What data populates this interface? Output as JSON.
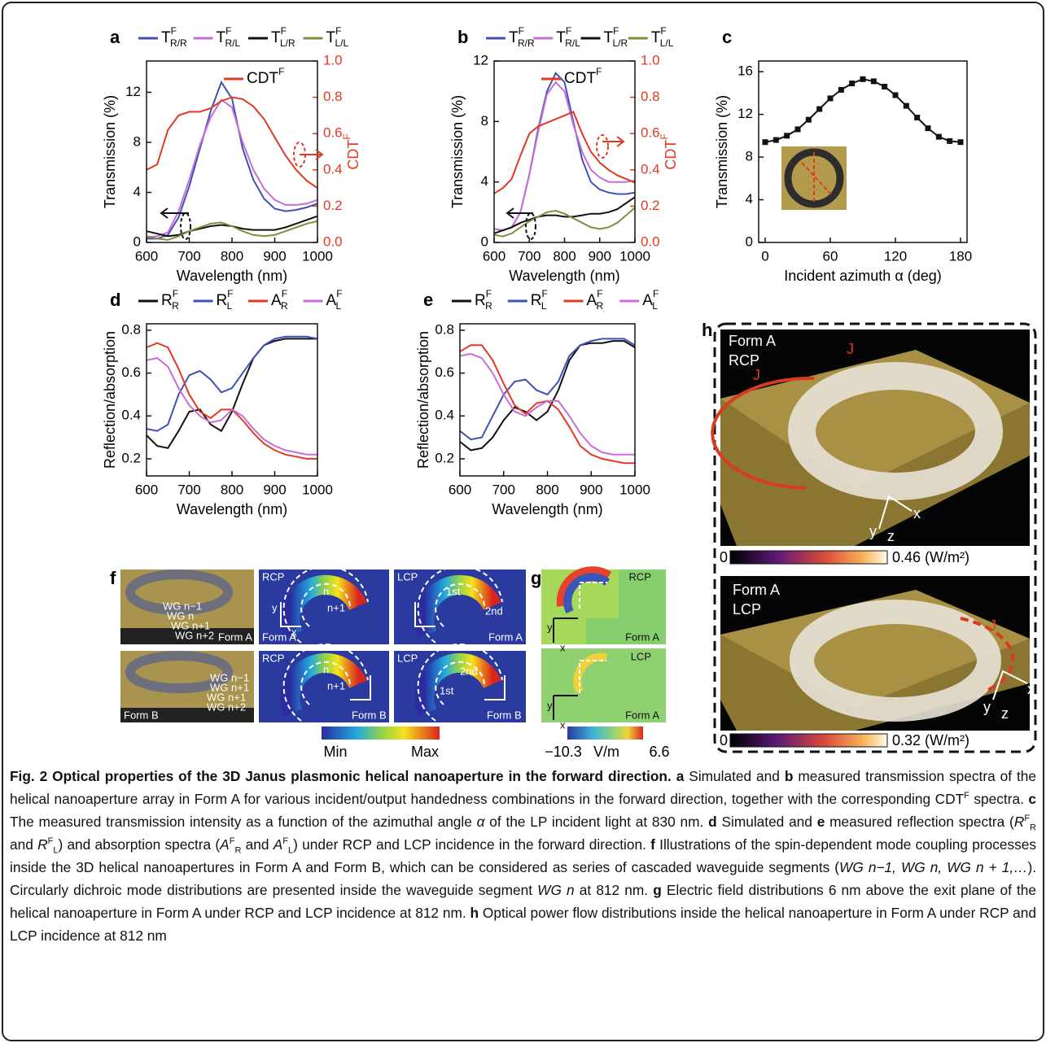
{
  "chart_data": [
    {
      "type": "line",
      "panel": "a",
      "xlabel": "Wavelength (nm)",
      "ylabel": "Transmission (%)",
      "y2label": "CDT",
      "y2label_sup": "F",
      "x": [
        600,
        625,
        650,
        675,
        700,
        725,
        750,
        775,
        800,
        825,
        850,
        875,
        900,
        925,
        950,
        975,
        1000
      ],
      "xlim": [
        600,
        1000
      ],
      "xticks": [
        600,
        700,
        800,
        900,
        1000
      ],
      "ylim": [
        0,
        14.5
      ],
      "yticks": [
        0,
        4,
        8,
        12
      ],
      "y2lim": [
        0,
        1
      ],
      "y2ticks": [
        {
          "value": 0,
          "label": "0.0"
        },
        {
          "value": 0.2,
          "label": "0.2"
        },
        {
          "value": 0.4,
          "label": "0.4"
        },
        {
          "value": 0.6,
          "label": "0.6"
        },
        {
          "value": 0.8,
          "label": "0.8"
        },
        {
          "value": 1,
          "label": "1.0"
        }
      ],
      "series": [
        {
          "name": "T",
          "sub": "R/R",
          "sup": "F",
          "color": "#3f51b5",
          "values": [
            0.3,
            0.3,
            0.6,
            2,
            4.5,
            7.5,
            10.5,
            12.8,
            11.5,
            7.5,
            5,
            3.5,
            2.7,
            2.5,
            2.6,
            2.8,
            3.1
          ]
        },
        {
          "name": "T",
          "sub": "R/L",
          "sup": "F",
          "color": "#c86dd7",
          "values": [
            0.4,
            0.5,
            0.8,
            2.5,
            5,
            7.8,
            10,
            11.4,
            10.8,
            8,
            5.8,
            4.3,
            3.4,
            3,
            3,
            3.1,
            3.4
          ]
        },
        {
          "name": "T",
          "sub": "L/R",
          "sup": "F",
          "color": "#111111",
          "values": [
            0.9,
            0.7,
            0.5,
            0.6,
            0.9,
            1.1,
            1.3,
            1.4,
            1.3,
            1.1,
            1,
            1,
            1,
            1.2,
            1.5,
            1.8,
            2.1
          ]
        },
        {
          "name": "T",
          "sub": "L/L",
          "sup": "F",
          "color": "#8a8a3c",
          "values": [
            0.5,
            0.3,
            0.2,
            0.5,
            0.9,
            1.2,
            1.5,
            1.6,
            1.3,
            0.9,
            0.6,
            0.5,
            0.6,
            0.9,
            1.2,
            1.5,
            1.7
          ]
        },
        {
          "name": "CDT",
          "sup": "F",
          "color": "#e03a22",
          "axis": "y2",
          "values": [
            0.4,
            0.43,
            0.62,
            0.7,
            0.72,
            0.72,
            0.74,
            0.78,
            0.8,
            0.79,
            0.75,
            0.68,
            0.58,
            0.48,
            0.4,
            0.34,
            0.3
          ]
        }
      ]
    },
    {
      "type": "line",
      "panel": "b",
      "xlabel": "Wavelength (nm)",
      "ylabel": "Transmission (%)",
      "y2label": "CDT",
      "y2label_sup": "F",
      "x": [
        600,
        625,
        650,
        675,
        700,
        725,
        750,
        775,
        800,
        825,
        850,
        875,
        900,
        925,
        950,
        975,
        1000
      ],
      "xlim": [
        600,
        1000
      ],
      "xticks": [
        600,
        700,
        800,
        900,
        1000
      ],
      "ylim": [
        0,
        12
      ],
      "yticks": [
        0,
        4,
        8,
        12
      ],
      "y2lim": [
        0,
        1
      ],
      "y2ticks": [
        {
          "value": 0,
          "label": "0.0"
        },
        {
          "value": 0.2,
          "label": "0.2"
        },
        {
          "value": 0.4,
          "label": "0.4"
        },
        {
          "value": 0.6,
          "label": "0.6"
        },
        {
          "value": 0.8,
          "label": "0.8"
        },
        {
          "value": 1,
          "label": "1.0"
        }
      ],
      "series": [
        {
          "name": "T",
          "sub": "R/R",
          "sup": "F",
          "color": "#3f51b5",
          "values": [
            0.9,
            0.8,
            1,
            2,
            4.5,
            7.5,
            10,
            11.2,
            10.6,
            8,
            5.5,
            4,
            3.5,
            3.3,
            3.2,
            3.2,
            3.3
          ]
        },
        {
          "name": "T",
          "sub": "R/L",
          "sup": "F",
          "color": "#c86dd7",
          "values": [
            0.9,
            0.8,
            1,
            2,
            4.5,
            7.3,
            9.8,
            10.6,
            10,
            7.8,
            6,
            4.8,
            4.3,
            4,
            4,
            4,
            4.1
          ]
        },
        {
          "name": "T",
          "sub": "L/R",
          "sup": "F",
          "color": "#111111",
          "values": [
            0.6,
            0.8,
            1,
            1.3,
            1.5,
            1.7,
            1.8,
            1.8,
            1.7,
            1.7,
            1.8,
            1.9,
            1.9,
            2,
            2.2,
            2.6,
            3
          ]
        },
        {
          "name": "T",
          "sub": "L/L",
          "sup": "F",
          "color": "#8a8a3c",
          "values": [
            0.5,
            0.4,
            0.6,
            1,
            1.4,
            1.7,
            2,
            2.1,
            1.9,
            1.6,
            1.3,
            1,
            0.9,
            1,
            1.3,
            1.8,
            2.3
          ]
        },
        {
          "name": "CDT",
          "sup": "F",
          "color": "#e03a22",
          "axis": "y2",
          "values": [
            0.27,
            0.3,
            0.35,
            0.48,
            0.6,
            0.64,
            0.66,
            0.68,
            0.7,
            0.72,
            0.6,
            0.5,
            0.44,
            0.4,
            0.37,
            0.35,
            0.33
          ]
        }
      ]
    },
    {
      "type": "line",
      "panel": "c",
      "markers": true,
      "xlabel": "Incident azimuth α (deg)",
      "ylabel": "Transmission (%)",
      "x": [
        0,
        10,
        20,
        30,
        40,
        50,
        60,
        70,
        80,
        90,
        100,
        110,
        120,
        130,
        140,
        150,
        160,
        170,
        180
      ],
      "xlim": [
        -6,
        186
      ],
      "xticks": [
        0,
        60,
        120,
        180
      ],
      "ylim": [
        0,
        17
      ],
      "yticks": [
        0,
        4,
        8,
        12,
        16
      ],
      "series": [
        {
          "color": "#111111",
          "values": [
            9.4,
            9.6,
            10,
            10.6,
            11.5,
            12.5,
            13.5,
            14.3,
            14.9,
            15.3,
            15.1,
            14.6,
            13.8,
            12.8,
            11.7,
            10.7,
            9.9,
            9.5,
            9.4
          ]
        }
      ]
    },
    {
      "type": "line",
      "panel": "d",
      "xlabel": "Wavelength (nm)",
      "ylabel": "Reflection/absorption",
      "x": [
        600,
        625,
        650,
        675,
        700,
        725,
        750,
        775,
        800,
        825,
        850,
        875,
        900,
        925,
        950,
        975,
        1000
      ],
      "xlim": [
        600,
        1000
      ],
      "xticks": [
        600,
        700,
        800,
        900,
        1000
      ],
      "ylim": [
        0.12,
        0.83
      ],
      "yticks": [
        0.2,
        0.4,
        0.6,
        0.8
      ],
      "series": [
        {
          "name": "R",
          "sub": "R",
          "sup": "F",
          "color": "#111111",
          "values": [
            0.31,
            0.26,
            0.25,
            0.33,
            0.42,
            0.43,
            0.36,
            0.33,
            0.42,
            0.55,
            0.67,
            0.73,
            0.75,
            0.76,
            0.76,
            0.76,
            0.76
          ]
        },
        {
          "name": "R",
          "sub": "L",
          "sup": "F",
          "color": "#3f51b5",
          "values": [
            0.34,
            0.33,
            0.36,
            0.5,
            0.59,
            0.61,
            0.57,
            0.51,
            0.53,
            0.6,
            0.67,
            0.73,
            0.76,
            0.77,
            0.77,
            0.77,
            0.76
          ]
        },
        {
          "name": "A",
          "sub": "R",
          "sup": "F",
          "color": "#e03a22",
          "values": [
            0.72,
            0.74,
            0.72,
            0.62,
            0.5,
            0.42,
            0.39,
            0.43,
            0.43,
            0.38,
            0.32,
            0.27,
            0.24,
            0.22,
            0.21,
            0.2,
            0.2
          ]
        },
        {
          "name": "A",
          "sub": "L",
          "sup": "F",
          "color": "#c86dd7",
          "values": [
            0.66,
            0.67,
            0.63,
            0.53,
            0.45,
            0.4,
            0.37,
            0.38,
            0.43,
            0.4,
            0.34,
            0.29,
            0.26,
            0.24,
            0.23,
            0.22,
            0.22
          ]
        }
      ]
    },
    {
      "type": "line",
      "panel": "e",
      "xlabel": "Wavelength (nm)",
      "ylabel": "Reflection/absorption",
      "x": [
        600,
        625,
        650,
        675,
        700,
        725,
        750,
        775,
        800,
        825,
        850,
        875,
        900,
        925,
        950,
        975,
        1000
      ],
      "xlim": [
        600,
        1000
      ],
      "xticks": [
        600,
        700,
        800,
        900,
        1000
      ],
      "ylim": [
        0.12,
        0.83
      ],
      "yticks": [
        0.2,
        0.4,
        0.6,
        0.8
      ],
      "series": [
        {
          "name": "R",
          "sub": "R",
          "sup": "F",
          "color": "#111111",
          "values": [
            0.28,
            0.24,
            0.25,
            0.3,
            0.38,
            0.44,
            0.42,
            0.38,
            0.42,
            0.52,
            0.66,
            0.73,
            0.74,
            0.74,
            0.75,
            0.75,
            0.72
          ]
        },
        {
          "name": "R",
          "sub": "L",
          "sup": "F",
          "color": "#3f51b5",
          "values": [
            0.33,
            0.29,
            0.3,
            0.4,
            0.5,
            0.56,
            0.57,
            0.52,
            0.5,
            0.56,
            0.68,
            0.73,
            0.75,
            0.76,
            0.76,
            0.76,
            0.73
          ]
        },
        {
          "name": "A",
          "sub": "R",
          "sup": "F",
          "color": "#e03a22",
          "values": [
            0.7,
            0.73,
            0.73,
            0.66,
            0.55,
            0.45,
            0.41,
            0.46,
            0.47,
            0.43,
            0.35,
            0.26,
            0.22,
            0.2,
            0.19,
            0.18,
            0.18
          ]
        },
        {
          "name": "A",
          "sub": "L",
          "sup": "F",
          "color": "#c86dd7",
          "values": [
            0.68,
            0.69,
            0.67,
            0.6,
            0.5,
            0.42,
            0.4,
            0.44,
            0.47,
            0.47,
            0.4,
            0.32,
            0.26,
            0.23,
            0.22,
            0.22,
            0.22
          ]
        }
      ]
    }
  ],
  "panel_f": {
    "label": "f",
    "form_a": "Form A",
    "form_b": "Form B",
    "rcp": "RCP",
    "lcp": "LCP",
    "wg_a": [
      "WG n−1",
      "WG n",
      "WG n+1",
      "WG n+2"
    ],
    "wg_b": [
      "WG n−1",
      "WG n+1",
      "WG n+1",
      "WG n+2"
    ],
    "n": "n",
    "n1": "n+1",
    "first": "1st",
    "second": "2nd",
    "x": "x",
    "y": "y",
    "cmin": "Min",
    "cmax": "Max"
  },
  "panel_g": {
    "label": "g",
    "rcp": "RCP",
    "lcp": "LCP",
    "form": "Form A",
    "x": "x",
    "y": "y",
    "cmin": "−10.3",
    "unit": "V/m",
    "cmax": "6.6"
  },
  "panel_h": {
    "label": "h",
    "form": "Form A",
    "rcp": "RCP",
    "lcp": "LCP",
    "j": "J",
    "x": "x",
    "y": "y",
    "z": "z",
    "cmin": "0",
    "top_max": "0.46 (W/m²)",
    "bottom_max": "0.32 (W/m²)"
  },
  "caption": {
    "title": "Fig. 2 Optical properties of the 3D Janus plasmonic helical nanoaperture in the forward direction.",
    "parts": [
      {
        "text": "a",
        "style": "b"
      },
      {
        "text": " Simulated and "
      },
      {
        "text": "b",
        "style": "b"
      },
      {
        "text": " measured transmission spectra of the helical nanoaperture array in Form A for various incident/output handedness combinations in the forward direction, together with the corresponding CDT"
      },
      {
        "text": "F",
        "style": "sup"
      },
      {
        "text": " spectra. "
      },
      {
        "text": "c",
        "style": "b"
      },
      {
        "text": " The measured transmission intensity as a function of the azimuthal angle "
      },
      {
        "text": "α",
        "style": "i"
      },
      {
        "text": " of the LP incident light at 830 nm. "
      },
      {
        "text": "d",
        "style": "b"
      },
      {
        "text": " Simulated and "
      },
      {
        "text": "e",
        "style": "b"
      },
      {
        "text": " measured reflection spectra ("
      },
      {
        "text": "R",
        "style": "i"
      },
      {
        "text": "F",
        "style": "sup"
      },
      {
        "text": "R",
        "style": "sub"
      },
      {
        "text": " and "
      },
      {
        "text": "R",
        "style": "i"
      },
      {
        "text": "F",
        "style": "sup"
      },
      {
        "text": "L",
        "style": "sub"
      },
      {
        "text": ") and absorption spectra ("
      },
      {
        "text": "A",
        "style": "i"
      },
      {
        "text": "F",
        "style": "sup"
      },
      {
        "text": "R",
        "style": "sub"
      },
      {
        "text": " and "
      },
      {
        "text": "A",
        "style": "i"
      },
      {
        "text": "F",
        "style": "sup"
      },
      {
        "text": "L",
        "style": "sub"
      },
      {
        "text": ") under RCP and LCP incidence in the forward direction. "
      },
      {
        "text": "f",
        "style": "b"
      },
      {
        "text": " Illustrations of the spin-dependent mode coupling processes inside the 3D helical nanoapertures in Form A and Form B, which can be considered as series of cascaded waveguide segments ("
      },
      {
        "text": "WG n−1, WG n, WG n + 1,…",
        "style": "i"
      },
      {
        "text": "). Circularly dichroic mode distributions are presented inside the waveguide segment "
      },
      {
        "text": "WG n",
        "style": "i"
      },
      {
        "text": " at 812 nm. "
      },
      {
        "text": "g",
        "style": "b"
      },
      {
        "text": " Electric field distributions 6 nm above the exit plane of the helical nanoaperture in Form A under RCP and LCP incidence at 812 nm. "
      },
      {
        "text": "h",
        "style": "b"
      },
      {
        "text": " Optical power flow distributions inside the helical nanoaperture in Form A under RCP and LCP incidence at 812 nm"
      }
    ]
  }
}
